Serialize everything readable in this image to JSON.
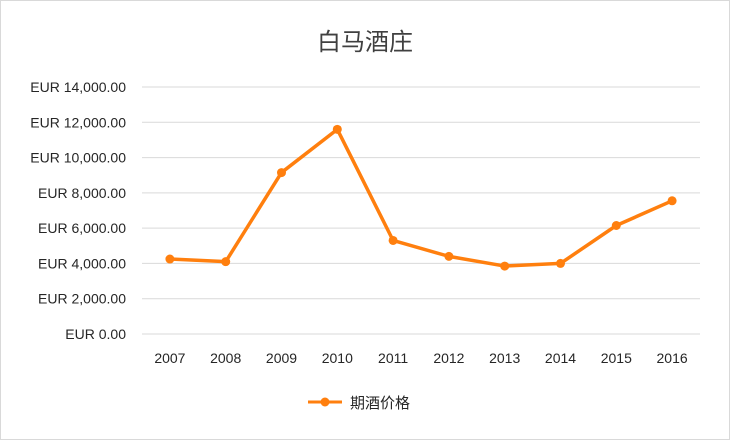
{
  "chart_data": {
    "type": "line",
    "title": "白马酒庄",
    "xlabel": "",
    "ylabel": "",
    "categories": [
      "2007",
      "2008",
      "2009",
      "2010",
      "2011",
      "2012",
      "2013",
      "2014",
      "2015",
      "2016"
    ],
    "series": [
      {
        "name": "期酒价格",
        "color": "#ff7f0e",
        "values": [
          4250,
          4100,
          9150,
          11600,
          5300,
          4400,
          3850,
          4000,
          6150,
          7550
        ]
      }
    ],
    "ylim": [
      0,
      14000
    ],
    "yticks": [
      0,
      2000,
      4000,
      6000,
      8000,
      10000,
      12000,
      14000
    ],
    "ytick_labels": [
      "EUR 0.00",
      "EUR 2,000.00",
      "EUR 4,000.00",
      "EUR 6,000.00",
      "EUR 8,000.00",
      "EUR 10,000.00",
      "EUR 12,000.00",
      "EUR 14,000.00"
    ],
    "grid": true,
    "legend": "bottom"
  }
}
